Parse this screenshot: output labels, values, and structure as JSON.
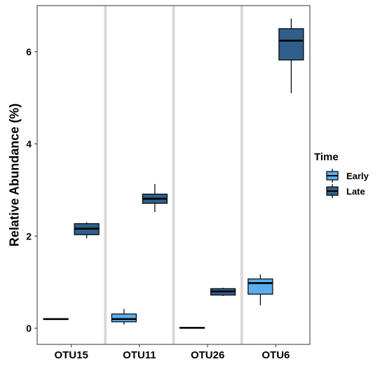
{
  "chart_data": {
    "type": "boxplot",
    "ylabel": "Relative Abundance (%)",
    "xlabel": "",
    "categories": [
      "OTU15",
      "OTU11",
      "OTU26",
      "OTU6"
    ],
    "ylim": [
      -0.35,
      7.0
    ],
    "yticks": [
      0,
      2,
      4,
      6
    ],
    "grid": false,
    "legend": {
      "title": "Time",
      "position": "right"
    },
    "series": [
      {
        "name": "Early",
        "color": "#5aaeee",
        "boxes": [
          {
            "min": 0.18,
            "q1": 0.19,
            "median": 0.2,
            "q3": 0.21,
            "max": 0.22
          },
          {
            "min": 0.08,
            "q1": 0.14,
            "median": 0.2,
            "q3": 0.31,
            "max": 0.42
          },
          {
            "min": 0.0,
            "q1": 0.0,
            "median": 0.01,
            "q3": 0.02,
            "max": 0.02
          },
          {
            "min": 0.5,
            "q1": 0.74,
            "median": 0.98,
            "q3": 1.07,
            "max": 1.17
          }
        ]
      },
      {
        "name": "Late",
        "color": "#2f5f8a",
        "boxes": [
          {
            "min": 1.95,
            "q1": 2.03,
            "median": 2.16,
            "q3": 2.27,
            "max": 2.3
          },
          {
            "min": 2.52,
            "q1": 2.71,
            "median": 2.81,
            "q3": 2.91,
            "max": 3.13
          },
          {
            "min": 0.7,
            "q1": 0.72,
            "median": 0.8,
            "q3": 0.86,
            "max": 0.88
          },
          {
            "min": 5.1,
            "q1": 5.82,
            "median": 6.24,
            "q3": 6.5,
            "max": 6.72
          }
        ]
      }
    ]
  }
}
